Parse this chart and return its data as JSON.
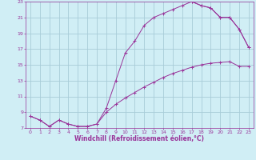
{
  "xlabel": "Windchill (Refroidissement éolien,°C)",
  "bg_color": "#d0eef5",
  "grid_color": "#a8ccd8",
  "line_color": "#993399",
  "xlim": [
    -0.5,
    23.5
  ],
  "ylim": [
    7,
    23
  ],
  "xticks": [
    0,
    1,
    2,
    3,
    4,
    5,
    6,
    7,
    8,
    9,
    10,
    11,
    12,
    13,
    14,
    15,
    16,
    17,
    18,
    19,
    20,
    21,
    22,
    23
  ],
  "yticks": [
    7,
    9,
    11,
    13,
    15,
    17,
    19,
    21,
    23
  ],
  "curve_upper_x": [
    0,
    1,
    2,
    3,
    4,
    5,
    6,
    7,
    8,
    9,
    10,
    11,
    12,
    13,
    14,
    15,
    16,
    17,
    18,
    19,
    20,
    21,
    22,
    23
  ],
  "curve_upper_y": [
    8.5,
    8.0,
    7.2,
    8.0,
    7.5,
    7.2,
    7.2,
    7.5,
    9.5,
    13.0,
    16.5,
    18.0,
    20.0,
    21.0,
    21.5,
    22.0,
    22.5,
    23.0,
    22.5,
    22.2,
    21.0,
    21.0,
    19.5,
    17.2
  ],
  "curve_lower_x": [
    0,
    1,
    2,
    3,
    4,
    5,
    6,
    7,
    8,
    9,
    10,
    11,
    12,
    13,
    14,
    15,
    16,
    17,
    18,
    19,
    20,
    21,
    22,
    23
  ],
  "curve_lower_y": [
    8.5,
    8.0,
    7.2,
    8.0,
    7.5,
    7.2,
    7.2,
    7.5,
    9.0,
    10.0,
    10.8,
    11.5,
    12.2,
    12.8,
    13.4,
    13.9,
    14.3,
    14.7,
    15.0,
    15.2,
    15.3,
    15.4,
    14.8,
    14.8
  ],
  "curve_right_x": [
    17,
    18,
    19,
    20,
    21,
    22,
    23
  ],
  "curve_right_y": [
    23.0,
    22.5,
    22.2,
    21.0,
    21.0,
    19.5,
    17.2
  ]
}
